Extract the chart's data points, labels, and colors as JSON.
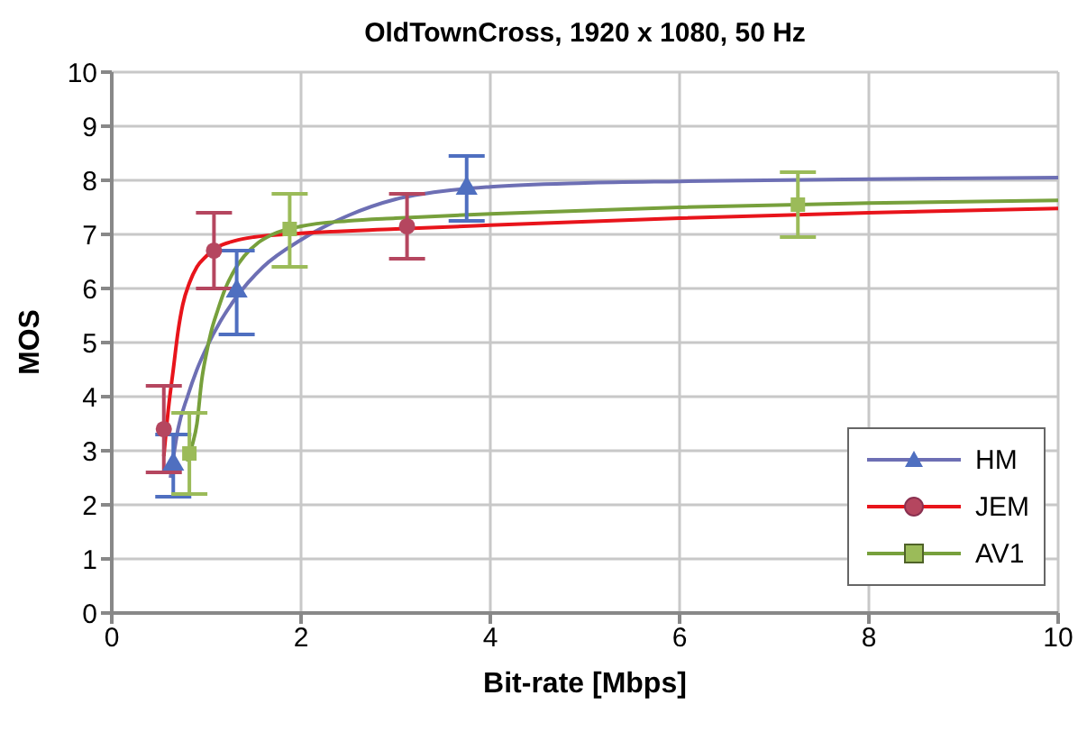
{
  "chart_data": {
    "type": "scatter",
    "title": "OldTownCross, 1920 x 1080, 50 Hz",
    "xlabel": "Bit-rate [Mbps]",
    "ylabel": "MOS",
    "xlim": [
      0,
      10
    ],
    "xticks": [
      0,
      2,
      4,
      6,
      8,
      10
    ],
    "ylim": [
      0,
      10
    ],
    "yticks": [
      0,
      1,
      2,
      3,
      4,
      5,
      6,
      7,
      8,
      9,
      10
    ],
    "grid": true,
    "legend": "bottom right",
    "series": [
      {
        "type": "line",
        "color": "#6d6fb4",
        "marker": "none",
        "x": [
          0.62,
          0.7,
          0.8,
          0.9,
          1.0,
          1.15,
          1.3,
          1.6,
          2,
          2.5,
          3,
          3.5,
          4,
          5,
          6,
          8,
          10
        ],
        "values": [
          2.5,
          3.4,
          4.0,
          4.5,
          4.9,
          5.4,
          5.8,
          6.4,
          6.9,
          7.35,
          7.65,
          7.8,
          7.88,
          7.95,
          7.98,
          8.02,
          8.05
        ]
      },
      {
        "type": "line",
        "color": "#e8141b",
        "marker": "none",
        "x": [
          0.55,
          0.6,
          0.65,
          0.7,
          0.75,
          0.82,
          0.9,
          1.0,
          1.1,
          1.3,
          1.5,
          2,
          3,
          4,
          6,
          8,
          10
        ],
        "values": [
          2.9,
          3.8,
          4.5,
          5.2,
          5.7,
          6.1,
          6.4,
          6.6,
          6.75,
          6.88,
          6.95,
          7.02,
          7.1,
          7.17,
          7.3,
          7.4,
          7.48
        ]
      },
      {
        "type": "line",
        "color": "#77a03c",
        "marker": "none",
        "x": [
          0.8,
          0.85,
          0.9,
          0.95,
          1.0,
          1.05,
          1.12,
          1.2,
          1.3,
          1.4,
          1.55,
          1.7,
          2,
          2.5,
          3,
          4,
          6,
          8,
          10
        ],
        "values": [
          2.8,
          3.1,
          3.5,
          4.3,
          4.8,
          5.2,
          5.6,
          6.0,
          6.35,
          6.6,
          6.85,
          7.0,
          7.15,
          7.25,
          7.3,
          7.38,
          7.5,
          7.58,
          7.63
        ]
      },
      {
        "name": "HM",
        "color": "#4f6fc0",
        "marker": "triangle",
        "x": [
          0.65,
          1.32,
          3.75
        ],
        "values": [
          2.75,
          5.95,
          7.85
        ],
        "errors": [
          [
            2.15,
            3.3
          ],
          [
            5.15,
            6.7
          ],
          [
            7.25,
            8.45
          ]
        ]
      },
      {
        "name": "JEM",
        "color": "#b5465f",
        "marker": "circle",
        "x": [
          0.55,
          1.08,
          3.12
        ],
        "values": [
          3.4,
          6.7,
          7.15
        ],
        "errors": [
          [
            2.6,
            4.2
          ],
          [
            6.0,
            7.4
          ],
          [
            6.55,
            7.75
          ]
        ]
      },
      {
        "name": "AV1",
        "color": "#9bbb59",
        "marker": "square",
        "x": [
          0.82,
          1.88,
          7.25
        ],
        "values": [
          2.95,
          7.1,
          7.55
        ],
        "errors": [
          [
            2.2,
            3.7
          ],
          [
            6.4,
            7.75
          ],
          [
            6.95,
            8.15
          ]
        ]
      }
    ]
  }
}
